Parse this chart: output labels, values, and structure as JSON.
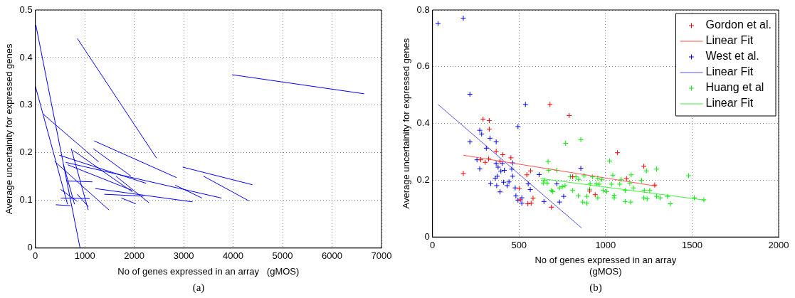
{
  "chart_data": [
    {
      "type": "line",
      "xlabel": "No of genes expressed in an array   (gMOS)",
      "ylabel": "Average uncertainity for expressed genes",
      "xlim": [
        0,
        7000
      ],
      "ylim": [
        0,
        0.5
      ],
      "xticks": [
        0,
        1000,
        2000,
        3000,
        4000,
        5000,
        6000,
        7000
      ],
      "yticks": [
        0,
        0.1,
        0.2,
        0.3,
        0.4,
        0.5
      ],
      "grid": true,
      "legend": false,
      "annotations": [
        "(a)"
      ],
      "series": [
        {
          "color": "#0000ff",
          "x": [
            11,
            904
          ],
          "values": [
            0.468,
            0
          ]
        },
        {
          "color": "#0000ff",
          "x": [
            0,
            650
          ],
          "values": [
            0.34,
            0.092
          ]
        },
        {
          "color": "#0000ff",
          "x": [
            850,
            2450
          ],
          "values": [
            0.44,
            0.189
          ]
        },
        {
          "color": "#0000ff",
          "x": [
            3980,
            6650
          ],
          "values": [
            0.364,
            0.324
          ]
        },
        {
          "color": "#0000ff",
          "x": [
            150,
            1280
          ],
          "values": [
            0.282,
            0.181
          ]
        },
        {
          "color": "#0000ff",
          "x": [
            1190,
            2855
          ],
          "values": [
            0.225,
            0.148
          ]
        },
        {
          "color": "#0000ff",
          "x": [
            1170,
            1935
          ],
          "values": [
            0.209,
            0.151
          ]
        },
        {
          "color": "#0000ff",
          "x": [
            2980,
            4390
          ],
          "values": [
            0.17,
            0.133
          ]
        },
        {
          "color": "#0000ff",
          "x": [
            3400,
            4320
          ],
          "values": [
            0.151,
            0.099
          ]
        },
        {
          "color": "#0000ff",
          "x": [
            485,
            2240
          ],
          "values": [
            0.195,
            0.136
          ]
        },
        {
          "color": "#0000ff",
          "x": [
            613,
            3765
          ],
          "values": [
            0.18,
            0.105
          ]
        },
        {
          "color": "#0000ff",
          "x": [
            2830,
            3370
          ],
          "values": [
            0.132,
            0.105
          ]
        },
        {
          "color": "#0000ff",
          "x": [
            1210,
            3180
          ],
          "values": [
            0.125,
            0.097
          ]
        },
        {
          "color": "#0000ff",
          "x": [
            1395,
            2185
          ],
          "values": [
            0.113,
            0.109
          ]
        },
        {
          "color": "#0000ff",
          "x": [
            390,
            1490
          ],
          "values": [
            0.182,
            0.08
          ]
        },
        {
          "color": "#0000ff",
          "x": [
            725,
            1070
          ],
          "values": [
            0.209,
            0.08
          ]
        },
        {
          "color": "#0000ff",
          "x": [
            625,
            1155
          ],
          "values": [
            0.141,
            0.139
          ]
        },
        {
          "color": "#0000ff",
          "x": [
            413,
            708
          ],
          "values": [
            0.091,
            0.089
          ]
        },
        {
          "color": "#0000ff",
          "x": [
            513,
            1100
          ],
          "values": [
            0.105,
            0.104
          ]
        },
        {
          "color": "#0000ff",
          "x": [
            513,
            848
          ],
          "values": [
            0.123,
            0.098
          ]
        },
        {
          "color": "#0000ff",
          "x": [
            764,
            1963
          ],
          "values": [
            0.205,
            0.118
          ]
        },
        {
          "color": "#0000ff",
          "x": [
            1630,
            2300
          ],
          "values": [
            0.151,
            0.095
          ]
        },
        {
          "color": "#0000ff",
          "x": [
            1740,
            2030
          ],
          "values": [
            0.105,
            0.093
          ]
        },
        {
          "color": "#0000ff",
          "x": [
            653,
            1963
          ],
          "values": [
            0.175,
            0.121
          ]
        },
        {
          "color": "#0000ff",
          "x": [
            569,
            792
          ],
          "values": [
            0.175,
            0.092
          ]
        },
        {
          "color": "#0000ff",
          "x": [
            848,
            1070
          ],
          "values": [
            0.113,
            0.087
          ]
        }
      ]
    },
    {
      "type": "scatter",
      "xlabel": "No of genes expressed in an array\n(gMOS)",
      "ylabel": "Average uncertainity for expressed genes",
      "xlim": [
        0,
        2000
      ],
      "ylim": [
        0,
        0.8
      ],
      "xticks": [
        0,
        500,
        1000,
        1500,
        2000
      ],
      "yticks": [
        0,
        0.2,
        0.4,
        0.6,
        0.8
      ],
      "grid": true,
      "legend": "top right",
      "annotations": [
        "(b)"
      ],
      "series": [
        {
          "name": "Gordon et al.",
          "marker": "cross",
          "color": "#ff0000",
          "x": [
            178,
            292,
            328,
            328,
            279,
            305,
            324,
            368,
            406,
            453,
            390,
            679,
            790,
            1069,
            1221,
            1121,
            1284,
            501,
            508,
            551,
            570,
            567,
            581,
            908,
            940,
            687,
            545,
            810
          ],
          "values": [
            0.224,
            0.415,
            0.41,
            0.38,
            0.272,
            0.263,
            0.275,
            0.302,
            0.29,
            0.279,
            0.267,
            0.467,
            0.428,
            0.297,
            0.249,
            0.206,
            0.183,
            0.171,
            0.131,
            0.117,
            0.119,
            0.233,
            0.137,
            0.162,
            0.149,
            0.105,
            0.219,
            0.212
          ]
        },
        {
          "name": "Linear Fit",
          "type": "line",
          "marker": "none",
          "color": "#ff5050",
          "x": [
            178,
            1295
          ],
          "values": [
            0.288,
            0.179
          ]
        },
        {
          "name": "West et al.",
          "marker": "cross",
          "color": "#0000ff",
          "x": [
            32,
            178,
            216,
            494,
            537,
            216,
            273,
            284,
            332,
            311,
            368,
            257,
            273,
            368,
            403,
            463,
            379,
            395,
            415,
            374,
            363,
            336,
            371,
            390,
            411,
            431,
            442,
            458,
            463,
            478,
            482,
            494,
            516,
            516,
            553,
            565,
            616,
            644,
            718,
            734,
            758,
            857
          ],
          "values": [
            0.752,
            0.771,
            0.503,
            0.389,
            0.467,
            0.335,
            0.376,
            0.363,
            0.348,
            0.313,
            0.335,
            0.272,
            0.24,
            0.259,
            0.259,
            0.261,
            0.246,
            0.232,
            0.235,
            0.214,
            0.207,
            0.188,
            0.181,
            0.159,
            0.193,
            0.181,
            0.194,
            0.239,
            0.214,
            0.173,
            0.145,
            0.13,
            0.138,
            0.119,
            0.187,
            0.167,
            0.22,
            0.125,
            0.187,
            0.123,
            0.143,
            0.242
          ]
        },
        {
          "name": "Linear Fit",
          "type": "line",
          "marker": "none",
          "color": "#5050ff",
          "x": [
            32,
            861
          ],
          "values": [
            0.467,
            0.032
          ]
        },
        {
          "name": "Huang et al",
          "marker": "cross",
          "color": "#00ee00",
          "x": [
            668,
            671,
            718,
            769,
            857,
            1023,
            1042,
            1148,
            1236,
            1295,
            1480,
            1513,
            1568,
            924,
            955,
            979,
            1090,
            1140,
            1208,
            1255,
            1295,
            1358,
            1374,
            1315,
            1221,
            1145,
            1113,
            1050,
            1006,
            987,
            963,
            908,
            868,
            892,
            842,
            810,
            892,
            766,
            750,
            734,
            695,
            687,
            647,
            640,
            663,
            797,
            829,
            845,
            876,
            911,
            947,
            1034,
            1082,
            1113,
            1161,
            1224,
            1240,
            1050,
            955
          ],
          "values": [
            0.266,
            0.235,
            0.235,
            0.33,
            0.343,
            0.268,
            0.218,
            0.219,
            0.233,
            0.239,
            0.216,
            0.138,
            0.131,
            0.212,
            0.207,
            0.203,
            0.203,
            0.19,
            0.199,
            0.164,
            0.143,
            0.143,
            0.117,
            0.138,
            0.138,
            0.123,
            0.125,
            0.138,
            0.16,
            0.164,
            0.186,
            0.168,
            0.123,
            0.119,
            0.145,
            0.164,
            0.143,
            0.181,
            0.177,
            0.173,
            0.16,
            0.164,
            0.199,
            0.19,
            0.19,
            0.212,
            0.212,
            0.203,
            0.216,
            0.188,
            0.187,
            0.186,
            0.186,
            0.164,
            0.173,
            0.164,
            0.134,
            0.147,
            0.138
          ]
        },
        {
          "name": "Linear Fit",
          "type": "line",
          "marker": "none",
          "color": "#40ee40",
          "x": [
            624,
            1571
          ],
          "values": [
            0.206,
            0.13
          ]
        }
      ]
    }
  ]
}
